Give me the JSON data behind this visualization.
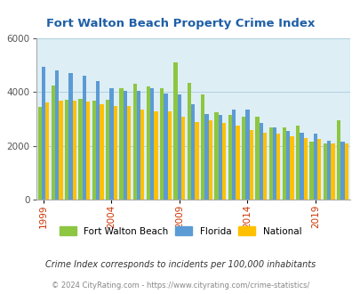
{
  "title": "Fort Walton Beach Property Crime Index",
  "years": [
    1999,
    2000,
    2001,
    2002,
    2003,
    2004,
    2005,
    2006,
    2007,
    2008,
    2009,
    2010,
    2011,
    2012,
    2013,
    2014,
    2015,
    2016,
    2017,
    2018,
    2019,
    2020,
    2021
  ],
  "fort_walton": [
    3450,
    4250,
    3700,
    3750,
    3680,
    3720,
    4150,
    4300,
    4200,
    4150,
    5100,
    4350,
    3900,
    3250,
    3150,
    3100,
    3100,
    2700,
    2700,
    2750,
    2150,
    2100,
    2950
  ],
  "florida": [
    4950,
    4800,
    4700,
    4600,
    4400,
    4150,
    4050,
    4050,
    4150,
    3950,
    3900,
    3550,
    3200,
    3150,
    3350,
    3350,
    2850,
    2700,
    2550,
    2500,
    2450,
    2200,
    2150
  ],
  "national": [
    3600,
    3680,
    3680,
    3650,
    3550,
    3500,
    3500,
    3350,
    3300,
    3300,
    3100,
    2900,
    2950,
    2850,
    2750,
    2600,
    2500,
    2450,
    2350,
    2300,
    2250,
    2100,
    2100
  ],
  "city_color": "#8dc641",
  "state_color": "#5b9bd5",
  "national_color": "#ffc000",
  "bg_color": "#ddeef5",
  "title_color": "#1f5fa6",
  "ylim": [
    0,
    6000
  ],
  "yticks": [
    0,
    2000,
    4000,
    6000
  ],
  "xtick_years": [
    1999,
    2004,
    2009,
    2014,
    2019
  ],
  "xtick_color": "#cc3300",
  "subtitle": "Crime Index corresponds to incidents per 100,000 inhabitants",
  "footer": "© 2024 CityRating.com - https://www.cityrating.com/crime-statistics/",
  "legend_labels": [
    "Fort Walton Beach",
    "Florida",
    "National"
  ],
  "bar_width": 0.28
}
